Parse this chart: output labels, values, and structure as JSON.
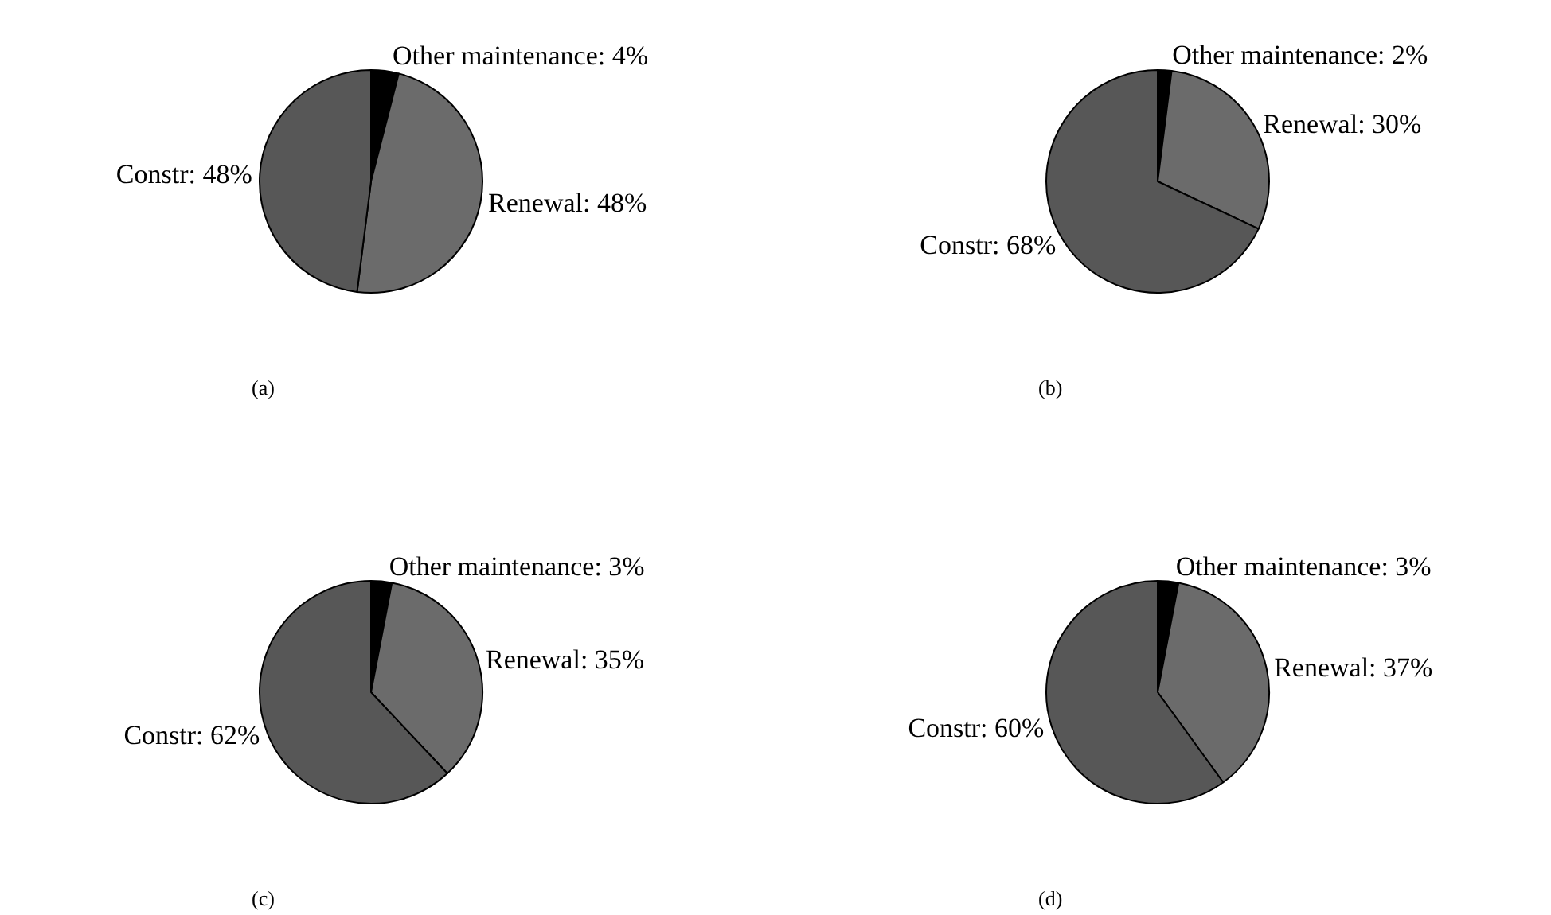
{
  "chart_data": [
    {
      "type": "pie",
      "categories": [
        "Other maintenance",
        "Renewal",
        "Constr"
      ],
      "values": [
        4,
        48,
        48
      ],
      "colors": [
        "#000000",
        "#6b6b6b",
        "#575757"
      ],
      "value_labels": [
        "4%",
        "48%",
        "48%"
      ],
      "annotations": [
        "(a)"
      ]
    },
    {
      "type": "pie",
      "categories": [
        "Other maintenance",
        "Renewal",
        "Constr"
      ],
      "values": [
        2,
        30,
        68
      ],
      "colors": [
        "#000000",
        "#6b6b6b",
        "#575757"
      ],
      "value_labels": [
        "2%",
        "30%",
        "68%"
      ],
      "annotations": [
        "(b)"
      ]
    },
    {
      "type": "pie",
      "categories": [
        "Other maintenance",
        "Renewal",
        "Constr"
      ],
      "values": [
        3,
        35,
        62
      ],
      "colors": [
        "#000000",
        "#6b6b6b",
        "#575757"
      ],
      "value_labels": [
        "3%",
        "35%",
        "62%"
      ],
      "annotations": [
        "(c)"
      ]
    },
    {
      "type": "pie",
      "categories": [
        "Other maintenance",
        "Renewal",
        "Constr"
      ],
      "values": [
        3,
        37,
        60
      ],
      "colors": [
        "#000000",
        "#6b6b6b",
        "#575757"
      ],
      "value_labels": [
        "3%",
        "37%",
        "60%"
      ],
      "annotations": [
        "(d)"
      ]
    }
  ]
}
